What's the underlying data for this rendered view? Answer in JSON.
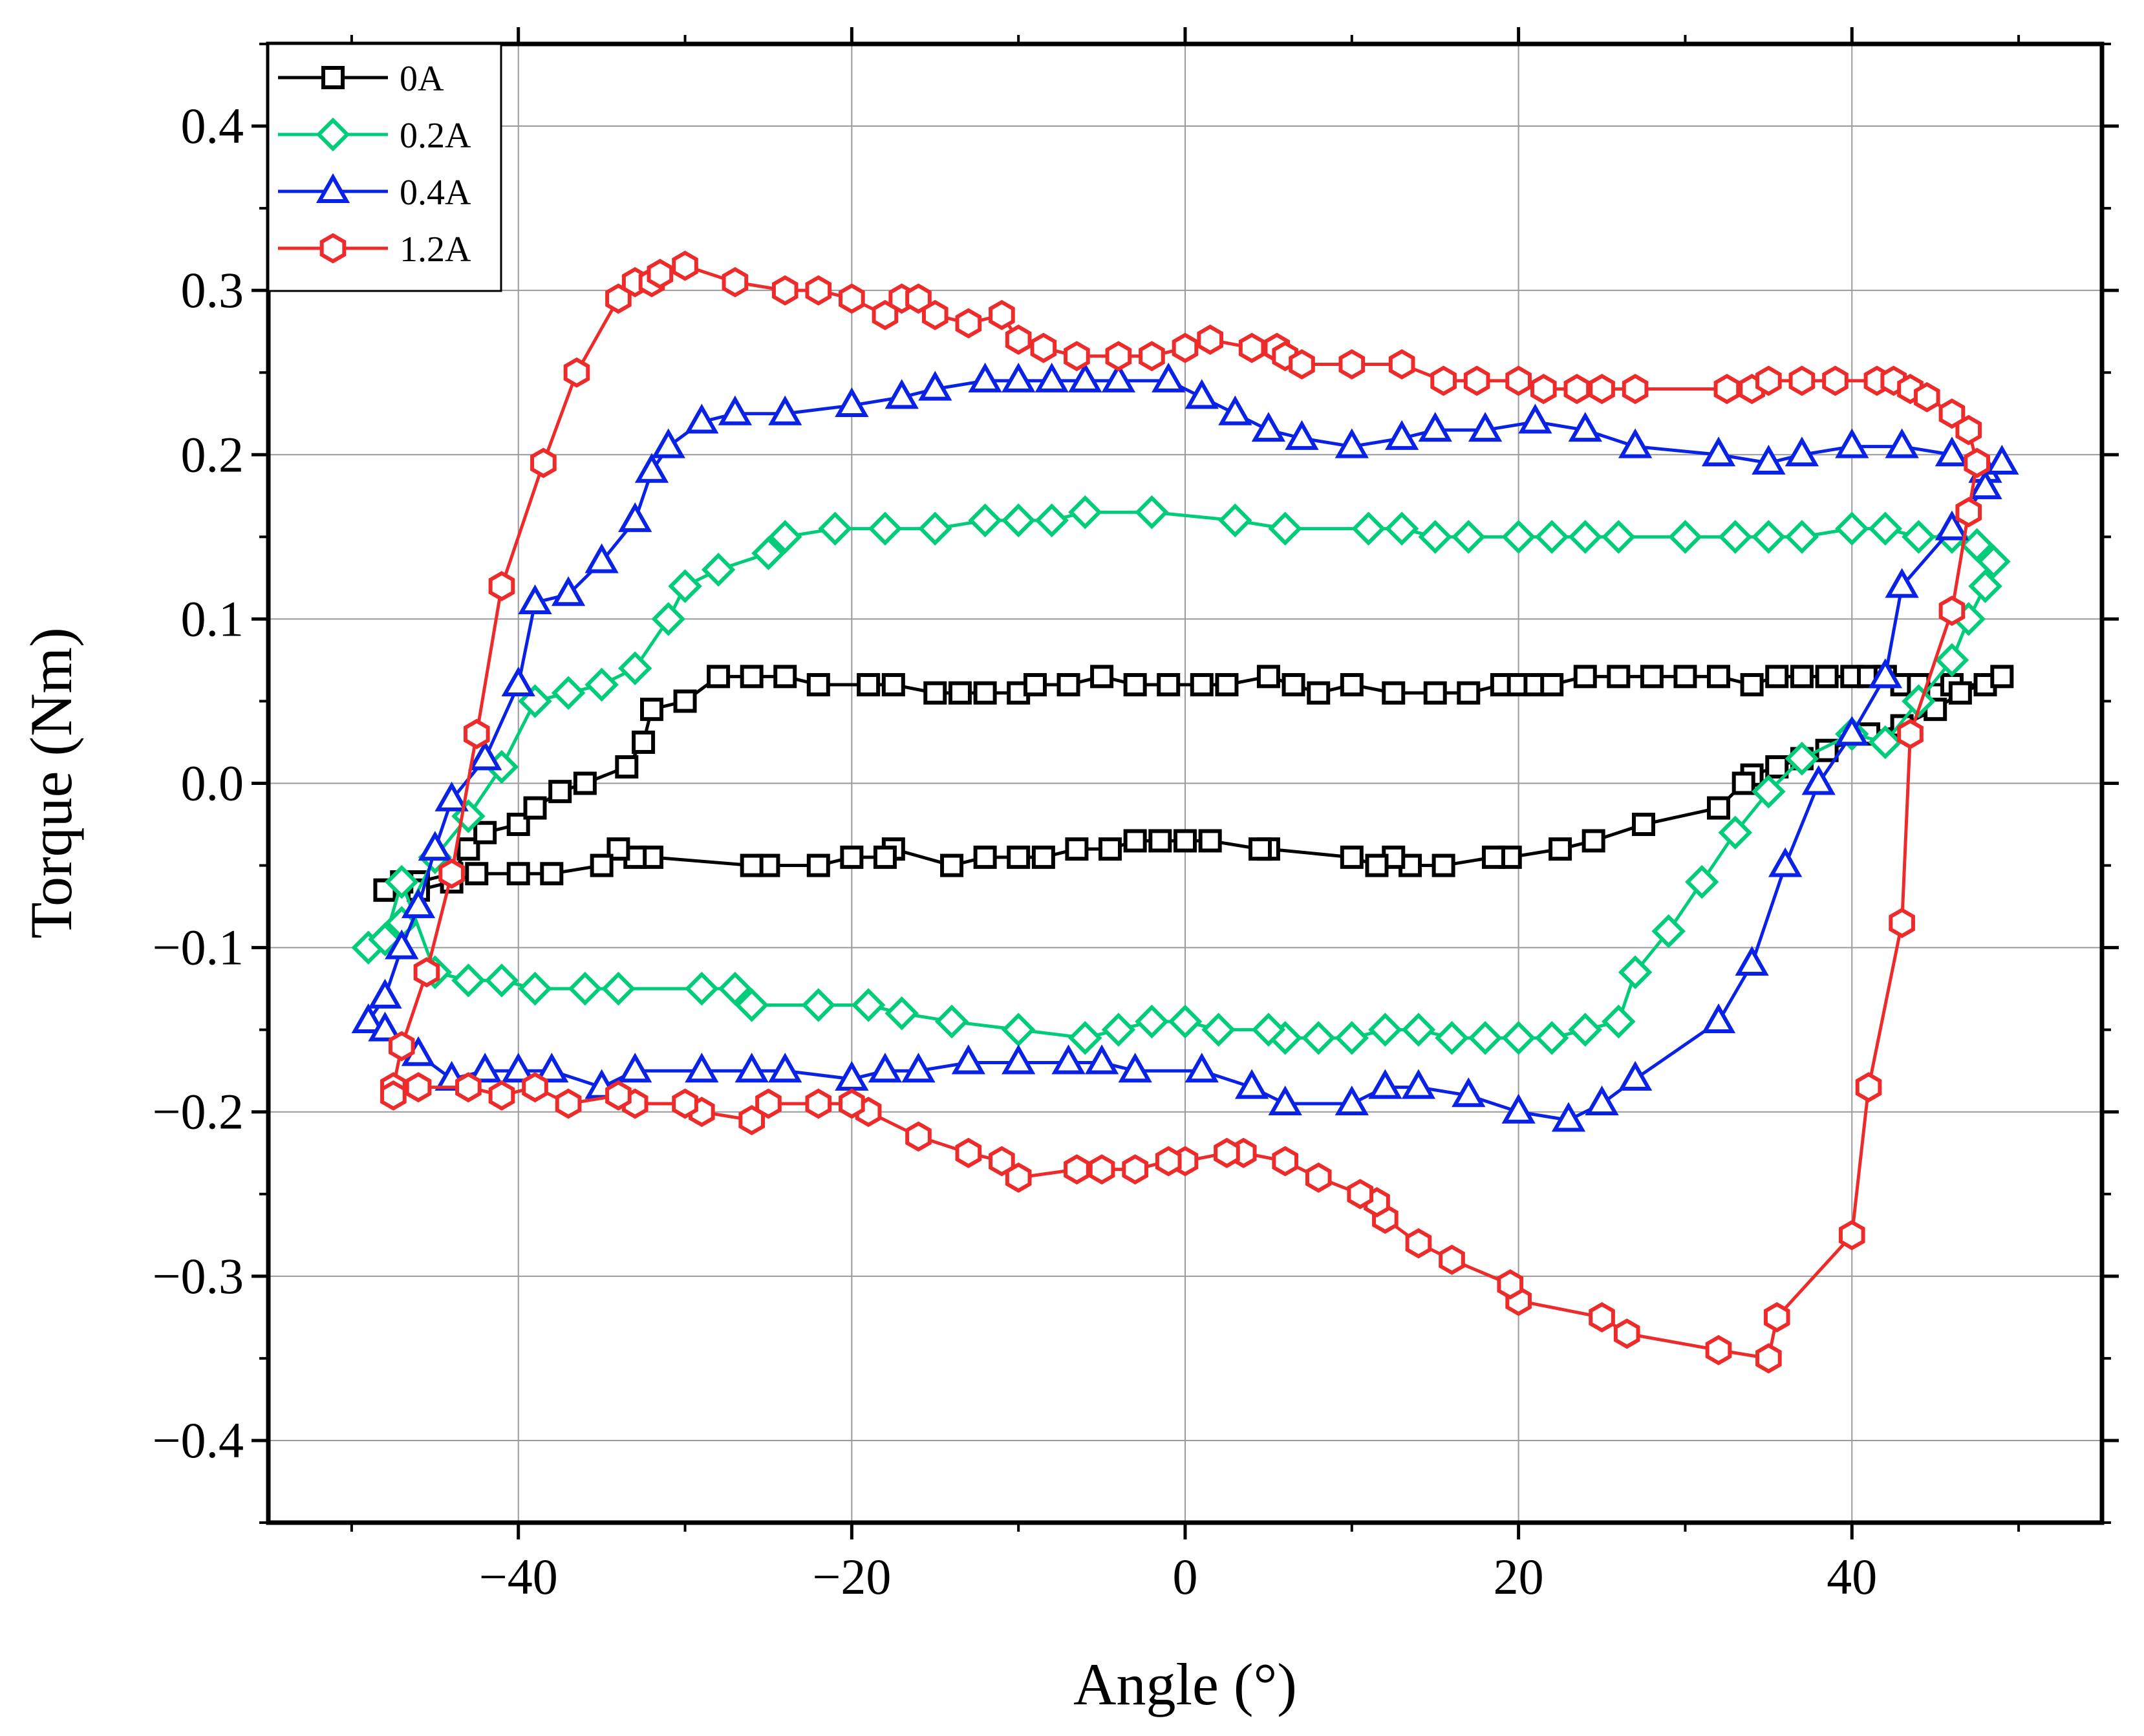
{
  "chart_data": {
    "type": "line",
    "title": "",
    "xlabel": "Angle (°)",
    "ylabel": "Torque (Nm)",
    "xlim": [
      -55,
      55
    ],
    "ylim": [
      -0.45,
      0.45
    ],
    "xticks": [
      -40,
      -20,
      0,
      20,
      40
    ],
    "xtick_labels": [
      "−40",
      "−20",
      "0",
      "20",
      "40"
    ],
    "yticks": [
      0.4,
      0.3,
      0.2,
      0.1,
      0.0,
      -0.1,
      -0.2,
      -0.3,
      -0.4
    ],
    "ytick_labels": [
      "0.4",
      "0.3",
      "0.2",
      "0.1",
      "0.0",
      "−0.1",
      "−0.2",
      "−0.3",
      "−0.4"
    ],
    "grid": true,
    "legend_position": "top-left",
    "series": [
      {
        "name": "0A",
        "color": "#000000",
        "marker": "square",
        "x": [
          -48,
          -46,
          -44,
          -43,
          -42,
          -40,
          -39,
          -37.5,
          -36,
          -33.5,
          -32.5,
          -32,
          -30,
          -28,
          -26,
          -24,
          -22,
          -19,
          -17.5,
          -15,
          -13.5,
          -12,
          -10,
          -9,
          -7,
          -5,
          -3,
          -1,
          1,
          2.5,
          5,
          6.5,
          8,
          10,
          12.5,
          15,
          17,
          19,
          20,
          21,
          22,
          24,
          26,
          28,
          30,
          32,
          34,
          35.5,
          37,
          38.5,
          40,
          41,
          42,
          43,
          44,
          46,
          48,
          49,
          46.5,
          45,
          43,
          41,
          38.5,
          37,
          35.5,
          34,
          33.5,
          32,
          27.5,
          24.5,
          22.5,
          19.5,
          18.5,
          15.5,
          13.5,
          12.5,
          11.5,
          10,
          5,
          4.5,
          1.5,
          0,
          -1.5,
          -3,
          -4.5,
          -6.5,
          -8.5,
          -10,
          -12,
          -14,
          -17.5,
          -18,
          -20,
          -22,
          -25,
          -26,
          -32,
          -33,
          -34,
          -35,
          -38,
          -40,
          -42.5,
          -44,
          -46,
          -47,
          -48
        ],
        "y": [
          -0.065,
          -0.06,
          -0.055,
          -0.04,
          -0.03,
          -0.025,
          -0.015,
          -0.005,
          0.0,
          0.01,
          0.025,
          0.045,
          0.05,
          0.065,
          0.065,
          0.065,
          0.06,
          0.06,
          0.06,
          0.055,
          0.055,
          0.055,
          0.055,
          0.06,
          0.06,
          0.065,
          0.06,
          0.06,
          0.06,
          0.06,
          0.065,
          0.06,
          0.055,
          0.06,
          0.055,
          0.055,
          0.055,
          0.06,
          0.06,
          0.06,
          0.06,
          0.065,
          0.065,
          0.065,
          0.065,
          0.065,
          0.06,
          0.065,
          0.065,
          0.065,
          0.065,
          0.065,
          0.065,
          0.06,
          0.06,
          0.06,
          0.06,
          0.065,
          0.055,
          0.045,
          0.035,
          0.03,
          0.02,
          0.015,
          0.01,
          0.005,
          0.0,
          -0.015,
          -0.025,
          -0.035,
          -0.04,
          -0.045,
          -0.045,
          -0.05,
          -0.05,
          -0.045,
          -0.05,
          -0.045,
          -0.04,
          -0.04,
          -0.035,
          -0.035,
          -0.035,
          -0.035,
          -0.04,
          -0.04,
          -0.045,
          -0.045,
          -0.045,
          -0.05,
          -0.04,
          -0.045,
          -0.045,
          -0.05,
          -0.05,
          -0.05,
          -0.045,
          -0.045,
          -0.04,
          -0.05,
          -0.055,
          -0.055,
          -0.055,
          -0.06,
          -0.065,
          -0.06,
          -0.065
        ]
      },
      {
        "name": "0.2A",
        "color": "#00cc7a",
        "marker": "diamond",
        "x": [
          -49,
          -47,
          -45,
          -43,
          -41,
          -39,
          -37,
          -35,
          -33,
          -31,
          -30,
          -28,
          -25,
          -24,
          -21,
          -18,
          -15,
          -12,
          -10,
          -8,
          -6,
          -2,
          3,
          6,
          11,
          13,
          15,
          17,
          20,
          22,
          24,
          26,
          30,
          33,
          35,
          37,
          40,
          42,
          44,
          46,
          47.5,
          48.5,
          48,
          47,
          46,
          44,
          42,
          40,
          37,
          35,
          33,
          31,
          29,
          27,
          26,
          24,
          22,
          20,
          18,
          16,
          14,
          12,
          10,
          8,
          6,
          5,
          2,
          0,
          -2,
          -4,
          -6,
          -10,
          -14,
          -17,
          -19,
          -22,
          -26,
          -27,
          -29,
          -34,
          -36,
          -39,
          -41,
          -43,
          -45,
          -47,
          -48
        ],
        "y": [
          -0.1,
          -0.085,
          -0.045,
          -0.02,
          0.01,
          0.05,
          0.055,
          0.06,
          0.07,
          0.1,
          0.12,
          0.13,
          0.14,
          0.15,
          0.155,
          0.155,
          0.155,
          0.16,
          0.16,
          0.16,
          0.165,
          0.165,
          0.16,
          0.155,
          0.155,
          0.155,
          0.15,
          0.15,
          0.15,
          0.15,
          0.15,
          0.15,
          0.15,
          0.15,
          0.15,
          0.15,
          0.155,
          0.155,
          0.15,
          0.15,
          0.145,
          0.135,
          0.12,
          0.1,
          0.075,
          0.05,
          0.025,
          0.03,
          0.015,
          -0.005,
          -0.03,
          -0.06,
          -0.09,
          -0.115,
          -0.145,
          -0.15,
          -0.155,
          -0.155,
          -0.155,
          -0.155,
          -0.15,
          -0.15,
          -0.155,
          -0.155,
          -0.155,
          -0.15,
          -0.15,
          -0.145,
          -0.145,
          -0.15,
          -0.155,
          -0.15,
          -0.145,
          -0.14,
          -0.135,
          -0.135,
          -0.135,
          -0.125,
          -0.125,
          -0.125,
          -0.125,
          -0.125,
          -0.12,
          -0.12,
          -0.115,
          -0.06,
          -0.095
        ]
      },
      {
        "name": "0.4A",
        "color": "#0a22e6",
        "marker": "triangle",
        "x": [
          -49,
          -48,
          -47,
          -46,
          -45,
          -44,
          -42,
          -40,
          -39,
          -37,
          -35,
          -33,
          -32,
          -31,
          -29,
          -27,
          -24,
          -20,
          -17,
          -15,
          -12,
          -10,
          -8,
          -6,
          -4,
          -1,
          1,
          3,
          5,
          7,
          10,
          13,
          15,
          18,
          21,
          24,
          27,
          32,
          35,
          37,
          40,
          43,
          46,
          48,
          49,
          48,
          46,
          43,
          42,
          40,
          38,
          36,
          34,
          32,
          27,
          25,
          23,
          20,
          17,
          14,
          12,
          10,
          6,
          4,
          1,
          -3,
          -5,
          -7,
          -10,
          -13,
          -16,
          -18,
          -20,
          -24,
          -26,
          -29,
          -33,
          -35,
          -38,
          -40,
          -42,
          -44,
          -46,
          -48
        ],
        "y": [
          -0.145,
          -0.13,
          -0.1,
          -0.075,
          -0.04,
          -0.01,
          0.015,
          0.06,
          0.11,
          0.115,
          0.135,
          0.16,
          0.19,
          0.205,
          0.22,
          0.225,
          0.225,
          0.23,
          0.235,
          0.24,
          0.245,
          0.245,
          0.245,
          0.245,
          0.245,
          0.245,
          0.235,
          0.225,
          0.215,
          0.21,
          0.205,
          0.21,
          0.215,
          0.215,
          0.22,
          0.215,
          0.205,
          0.2,
          0.195,
          0.2,
          0.205,
          0.205,
          0.2,
          0.19,
          0.195,
          0.18,
          0.155,
          0.12,
          0.065,
          0.03,
          0.0,
          -0.05,
          -0.11,
          -0.145,
          -0.18,
          -0.195,
          -0.205,
          -0.2,
          -0.19,
          -0.185,
          -0.185,
          -0.195,
          -0.195,
          -0.185,
          -0.175,
          -0.175,
          -0.17,
          -0.17,
          -0.17,
          -0.17,
          -0.175,
          -0.175,
          -0.18,
          -0.175,
          -0.175,
          -0.175,
          -0.175,
          -0.185,
          -0.175,
          -0.175,
          -0.175,
          -0.18,
          -0.165,
          -0.15
        ]
      },
      {
        "name": "1.2A",
        "color": "#ee2b2b",
        "marker": "hexagon",
        "x": [
          -47.5,
          -47,
          -45.5,
          -44,
          -42.5,
          -41,
          -38.5,
          -36.5,
          -34,
          -33,
          -32,
          -31.5,
          -30,
          -27,
          -24,
          -22,
          -20,
          -18,
          -17,
          -16,
          -15,
          -13,
          -11,
          -10,
          -8.5,
          -6.5,
          -4,
          -2,
          0,
          1.5,
          4,
          5.5,
          6,
          7,
          10,
          13,
          15.5,
          17.5,
          20,
          21.5,
          23.5,
          25,
          27,
          32.5,
          34,
          35,
          37,
          39,
          41.5,
          42.5,
          43.5,
          44.5,
          46,
          47,
          47.5,
          47,
          46,
          43.5,
          43,
          41,
          40,
          35.5,
          35,
          32,
          26.5,
          25,
          20,
          19.5,
          16,
          14,
          12,
          11.5,
          10.5,
          8,
          6,
          3.5,
          2.5,
          0,
          -1,
          -3,
          -5,
          -6.5,
          -10,
          -11,
          -13,
          -16,
          -19,
          -20,
          -22,
          -25,
          -26,
          -29,
          -30,
          -33,
          -34,
          -37,
          -39,
          -41,
          -43,
          -46,
          -47.5
        ],
        "y": [
          -0.185,
          -0.16,
          -0.115,
          -0.055,
          0.03,
          0.12,
          0.195,
          0.25,
          0.295,
          0.305,
          0.305,
          0.31,
          0.315,
          0.305,
          0.3,
          0.3,
          0.295,
          0.285,
          0.295,
          0.295,
          0.285,
          0.28,
          0.285,
          0.27,
          0.265,
          0.26,
          0.26,
          0.26,
          0.265,
          0.27,
          0.265,
          0.265,
          0.26,
          0.255,
          0.255,
          0.255,
          0.245,
          0.245,
          0.245,
          0.24,
          0.24,
          0.24,
          0.24,
          0.24,
          0.24,
          0.245,
          0.245,
          0.245,
          0.245,
          0.245,
          0.24,
          0.235,
          0.225,
          0.215,
          0.195,
          0.165,
          0.105,
          0.03,
          -0.085,
          -0.185,
          -0.275,
          -0.325,
          -0.35,
          -0.345,
          -0.335,
          -0.325,
          -0.315,
          -0.305,
          -0.29,
          -0.28,
          -0.265,
          -0.255,
          -0.25,
          -0.24,
          -0.23,
          -0.225,
          -0.225,
          -0.23,
          -0.23,
          -0.235,
          -0.235,
          -0.235,
          -0.24,
          -0.23,
          -0.225,
          -0.215,
          -0.2,
          -0.195,
          -0.195,
          -0.195,
          -0.205,
          -0.2,
          -0.195,
          -0.195,
          -0.19,
          -0.195,
          -0.185,
          -0.19,
          -0.185,
          -0.185,
          -0.19
        ]
      }
    ]
  }
}
